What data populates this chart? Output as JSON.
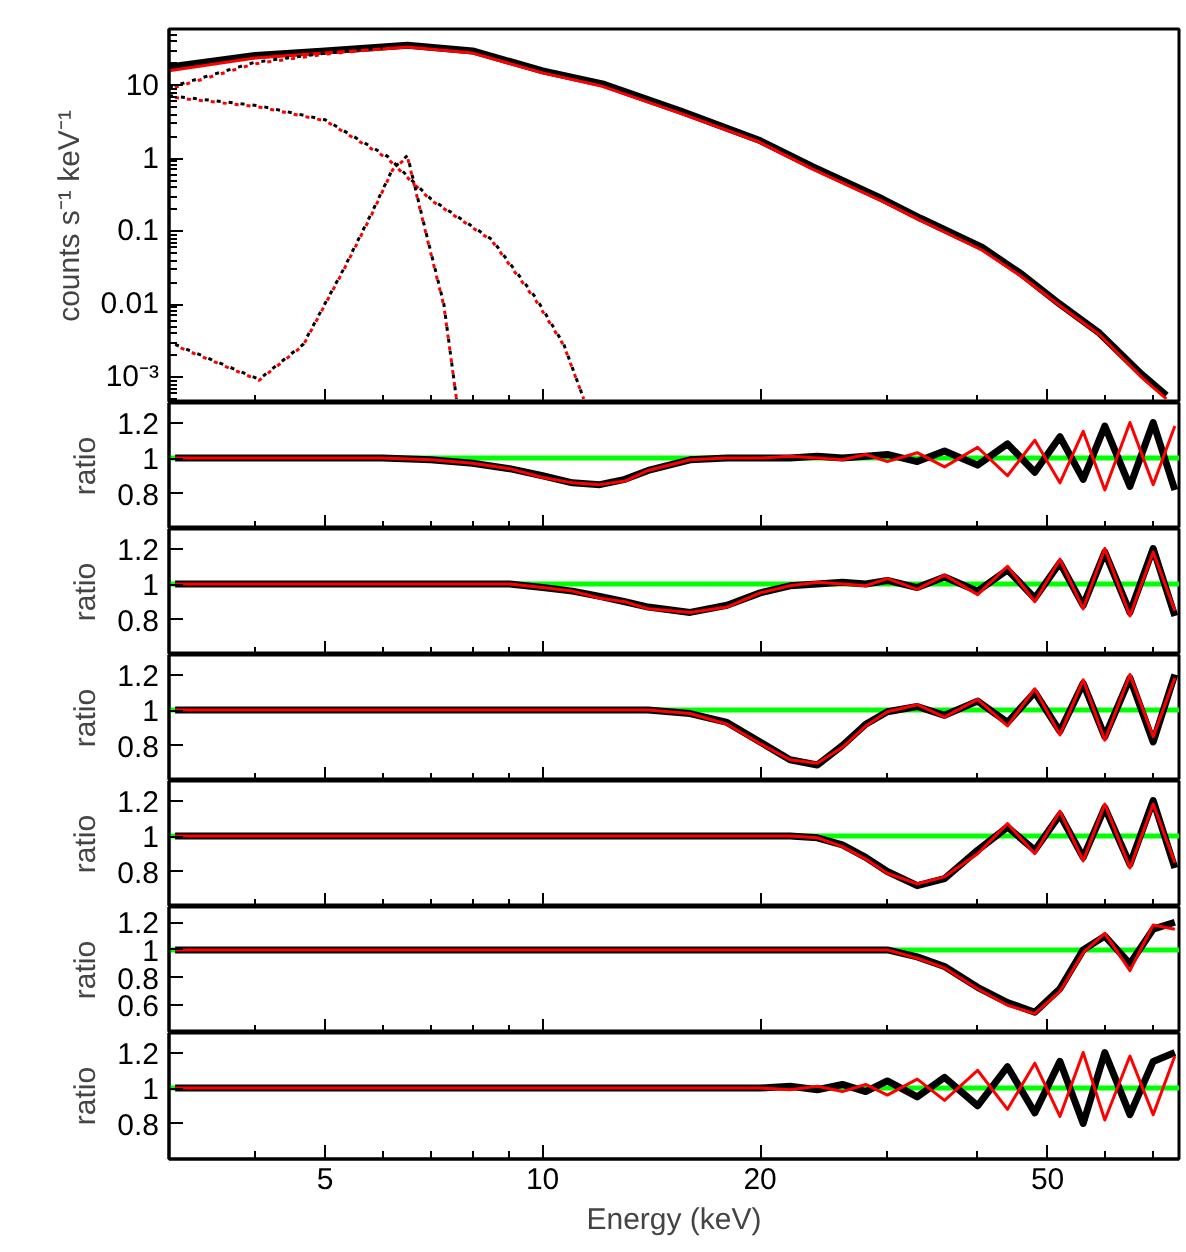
{
  "chart_data": [
    {
      "type": "line",
      "ylabel": "counts s⁻¹ keV⁻¹",
      "log": "xy",
      "xlim": [
        3.04,
        76
      ],
      "xticks": [
        5,
        10,
        20,
        50
      ],
      "ylim": [
        0.00044,
        60
      ],
      "yticks": [
        {
          "value": 0.001,
          "label": "10⁻³"
        },
        0.01,
        0.1,
        1,
        10
      ],
      "tick_labels": "y",
      "series": [
        {
          "color": "#000000",
          "x": [
            3.04,
            4,
            5,
            6,
            6.5,
            8,
            10,
            12.1,
            15.6,
            19.9,
            23.6,
            29.5,
            33.4,
            40.6,
            46,
            52,
            59,
            67.4,
            73
          ],
          "values": [
            18,
            26,
            30,
            34,
            36,
            30,
            16,
            10.6,
            4.4,
            1.8,
            0.78,
            0.28,
            0.15,
            0.06,
            0.026,
            0.01,
            0.004,
            0.0011,
            0.00056
          ]
        },
        {
          "color": "#ff0000",
          "x": [
            3.04,
            4,
            5,
            6,
            6.5,
            8,
            10,
            12.1,
            15.6,
            19.9,
            23.6,
            29.5,
            33.4,
            40.6,
            46,
            52,
            59,
            67.4,
            73
          ],
          "values": [
            16,
            24,
            28,
            32,
            34,
            28,
            15,
            9.8,
            4.1,
            1.7,
            0.72,
            0.26,
            0.14,
            0.055,
            0.024,
            0.0095,
            0.0038,
            0.001,
            0.0005
          ]
        },
        {
          "color": "#000000",
          "line_style": "dotted",
          "x": [
            3.04,
            4,
            5,
            6
          ],
          "values": [
            9.5,
            21,
            28,
            33
          ]
        },
        {
          "color": "#ff0000",
          "line_style": "dotted",
          "x": [
            3.04,
            4,
            5,
            6
          ],
          "values": [
            9,
            20,
            27,
            32
          ]
        },
        {
          "color": "#000000",
          "line_style": "dotted",
          "x": [
            3.04,
            4.05,
            5,
            6.1,
            7,
            8.5,
            9.8,
            10.7,
            11.4
          ],
          "values": [
            7.3,
            5.3,
            3.4,
            1.07,
            0.28,
            0.078,
            0.012,
            0.0028,
            0.0005
          ]
        },
        {
          "color": "#ff0000",
          "line_style": "dotted",
          "x": [
            3.04,
            4.05,
            5,
            6.1,
            7,
            8.5,
            9.8,
            10.7,
            11.4
          ],
          "values": [
            7,
            5.1,
            3.3,
            1.0,
            0.27,
            0.075,
            0.011,
            0.0027,
            0.0005
          ]
        },
        {
          "color": "#000000",
          "line_style": "dotted",
          "x": [
            3.1,
            4.05,
            4.66,
            5.3,
            5.8,
            6.2,
            6.5,
            6.9,
            7.3,
            7.6
          ],
          "values": [
            0.0028,
            0.00093,
            0.0028,
            0.03,
            0.18,
            0.72,
            1.1,
            0.094,
            0.01,
            0.0005
          ]
        },
        {
          "color": "#ff0000",
          "line_style": "dotted",
          "x": [
            3.1,
            4.05,
            4.66,
            5.3,
            5.8,
            6.2,
            6.5,
            6.9,
            7.3,
            7.6
          ],
          "values": [
            0.0027,
            0.0009,
            0.0027,
            0.029,
            0.17,
            0.7,
            1.05,
            0.09,
            0.0095,
            0.0005
          ]
        }
      ]
    },
    {
      "type": "line",
      "ylabel": "ratio",
      "log": "x",
      "xlim": [
        3.04,
        76
      ],
      "xticks": [
        5,
        10,
        20,
        50
      ],
      "ylim": [
        0.6,
        1.31
      ],
      "yticks": [
        0.8,
        1,
        1.2
      ],
      "tick_labels": "y",
      "x": [
        3.1,
        4,
        5,
        6,
        7,
        8,
        9,
        10,
        11,
        12,
        13,
        14,
        16,
        18,
        20,
        22,
        24,
        26,
        28,
        30,
        33,
        36,
        40,
        44,
        48,
        52,
        56,
        60,
        65,
        70,
        75
      ],
      "ref_lines": [
        {
          "axis": "y",
          "value": 1,
          "color": "#00ff00"
        }
      ],
      "series": [
        {
          "color": "#000000",
          "values": [
            1,
            1,
            1,
            1,
            0.99,
            0.97,
            0.94,
            0.9,
            0.86,
            0.85,
            0.88,
            0.93,
            0.99,
            1,
            1,
            1,
            1.01,
            1,
            1.01,
            1.02,
            0.98,
            1.04,
            0.96,
            1.08,
            0.92,
            1.12,
            0.88,
            1.18,
            0.84,
            1.2,
            0.82
          ]
        },
        {
          "color": "#ff0000",
          "values": [
            1,
            1,
            1,
            1,
            0.99,
            0.97,
            0.94,
            0.89,
            0.86,
            0.85,
            0.87,
            0.93,
            0.99,
            1,
            1,
            1.01,
            1,
            0.99,
            1.02,
            0.98,
            1.03,
            0.95,
            1.06,
            0.9,
            1.1,
            0.86,
            1.15,
            0.82,
            1.2,
            0.85,
            1.18
          ]
        }
      ]
    },
    {
      "type": "line",
      "ylabel": "ratio",
      "log": "x",
      "xlim": [
        3.04,
        76
      ],
      "xticks": [
        5,
        10,
        20,
        50
      ],
      "ylim": [
        0.6,
        1.31
      ],
      "yticks": [
        0.8,
        1,
        1.2
      ],
      "tick_labels": "y",
      "x": [
        3.1,
        4,
        5,
        6,
        7,
        8,
        9,
        10,
        11,
        12,
        13,
        14,
        16,
        18,
        20,
        22,
        24,
        26,
        28,
        30,
        33,
        36,
        40,
        44,
        48,
        52,
        56,
        60,
        65,
        70,
        75
      ],
      "ref_lines": [
        {
          "axis": "y",
          "value": 1,
          "color": "#00ff00"
        }
      ],
      "series": [
        {
          "color": "#000000",
          "values": [
            1,
            1,
            1,
            1,
            1,
            1,
            1,
            0.98,
            0.96,
            0.93,
            0.9,
            0.87,
            0.84,
            0.88,
            0.95,
            0.99,
            1,
            1.01,
            1,
            1.02,
            0.98,
            1.04,
            0.96,
            1.08,
            0.92,
            1.12,
            0.88,
            1.18,
            0.84,
            1.2,
            0.82
          ]
        },
        {
          "color": "#ff0000",
          "values": [
            1,
            1,
            1,
            1,
            1,
            1,
            1,
            0.98,
            0.96,
            0.92,
            0.9,
            0.86,
            0.84,
            0.87,
            0.95,
            0.99,
            1.01,
            1,
            0.99,
            1.03,
            0.97,
            1.05,
            0.94,
            1.1,
            0.9,
            1.14,
            0.86,
            1.2,
            0.82,
            1.18,
            0.85
          ]
        }
      ]
    },
    {
      "type": "line",
      "ylabel": "ratio",
      "log": "x",
      "xlim": [
        3.04,
        76
      ],
      "xticks": [
        5,
        10,
        20,
        50
      ],
      "ylim": [
        0.6,
        1.31
      ],
      "yticks": [
        0.8,
        1,
        1.2
      ],
      "tick_labels": "y",
      "x": [
        3.1,
        4,
        5,
        6,
        7,
        8,
        9,
        10,
        11,
        12,
        13,
        14,
        16,
        18,
        20,
        22,
        24,
        26,
        28,
        30,
        33,
        36,
        40,
        44,
        48,
        52,
        56,
        60,
        65,
        70,
        75
      ],
      "ref_lines": [
        {
          "axis": "y",
          "value": 1,
          "color": "#00ff00"
        }
      ],
      "series": [
        {
          "color": "#000000",
          "values": [
            1,
            1,
            1,
            1,
            1,
            1,
            1,
            1,
            1,
            1,
            1,
            1,
            0.98,
            0.93,
            0.82,
            0.72,
            0.69,
            0.8,
            0.92,
            0.99,
            1.02,
            0.97,
            1.05,
            0.93,
            1.1,
            0.88,
            1.15,
            0.85,
            1.18,
            0.82,
            1.2
          ]
        },
        {
          "color": "#ff0000",
          "values": [
            1,
            1,
            1,
            1,
            1,
            1,
            1,
            1,
            1,
            1,
            1,
            1,
            0.98,
            0.92,
            0.81,
            0.72,
            0.7,
            0.79,
            0.91,
            0.99,
            1.03,
            0.96,
            1.06,
            0.91,
            1.12,
            0.86,
            1.17,
            0.83,
            1.2,
            0.85,
            1.18
          ]
        }
      ]
    },
    {
      "type": "line",
      "ylabel": "ratio",
      "log": "x",
      "xlim": [
        3.04,
        76
      ],
      "xticks": [
        5,
        10,
        20,
        50
      ],
      "ylim": [
        0.6,
        1.31
      ],
      "yticks": [
        0.8,
        1,
        1.2
      ],
      "tick_labels": "y",
      "x": [
        3.1,
        4,
        5,
        6,
        7,
        8,
        9,
        10,
        11,
        12,
        13,
        14,
        16,
        18,
        20,
        22,
        24,
        26,
        28,
        30,
        33,
        36,
        40,
        44,
        48,
        52,
        56,
        60,
        65,
        70,
        75
      ],
      "ref_lines": [
        {
          "axis": "y",
          "value": 1,
          "color": "#00ff00"
        }
      ],
      "series": [
        {
          "color": "#000000",
          "values": [
            1,
            1,
            1,
            1,
            1,
            1,
            1,
            1,
            1,
            1,
            1,
            1,
            1,
            1,
            1,
            1,
            0.99,
            0.95,
            0.88,
            0.8,
            0.72,
            0.76,
            0.92,
            1.05,
            0.92,
            1.12,
            0.88,
            1.16,
            0.84,
            1.2,
            0.82
          ]
        },
        {
          "color": "#ff0000",
          "values": [
            1,
            1,
            1,
            1,
            1,
            1,
            1,
            1,
            1,
            1,
            1,
            1,
            1,
            1,
            1,
            1,
            0.99,
            0.94,
            0.87,
            0.79,
            0.73,
            0.77,
            0.9,
            1.07,
            0.9,
            1.14,
            0.86,
            1.18,
            0.82,
            1.18,
            0.85
          ]
        }
      ]
    },
    {
      "type": "line",
      "ylabel": "ratio",
      "log": "x",
      "xlim": [
        3.04,
        76
      ],
      "xticks": [
        5,
        10,
        20,
        50
      ],
      "ylim": [
        0.4,
        1.31
      ],
      "yticks": [
        0.6,
        0.8,
        1,
        1.2
      ],
      "tick_labels": "y",
      "x": [
        3.1,
        4,
        5,
        6,
        7,
        8,
        9,
        10,
        11,
        12,
        13,
        14,
        16,
        18,
        20,
        22,
        24,
        26,
        28,
        30,
        33,
        36,
        40,
        44,
        48,
        52,
        56,
        60,
        65,
        70,
        75
      ],
      "ref_lines": [
        {
          "axis": "y",
          "value": 1,
          "color": "#00ff00"
        }
      ],
      "series": [
        {
          "color": "#000000",
          "values": [
            1,
            1,
            1,
            1,
            1,
            1,
            1,
            1,
            1,
            1,
            1,
            1,
            1,
            1,
            1,
            1,
            1,
            1,
            1,
            1,
            0.95,
            0.88,
            0.73,
            0.62,
            0.55,
            0.72,
            1.0,
            1.1,
            0.9,
            1.15,
            1.2
          ]
        },
        {
          "color": "#ff0000",
          "values": [
            1,
            1,
            1,
            1,
            1,
            1,
            1,
            1,
            1,
            1,
            1,
            1,
            1,
            1,
            1,
            1,
            1,
            1,
            1,
            1,
            0.94,
            0.87,
            0.72,
            0.6,
            0.54,
            0.7,
            0.98,
            1.12,
            0.85,
            1.18,
            1.15
          ]
        }
      ]
    },
    {
      "type": "line",
      "ylabel": "ratio",
      "xlabel": "Energy (keV)",
      "log": "x",
      "xlim": [
        3.04,
        76
      ],
      "xticks": [
        5,
        10,
        20,
        50
      ],
      "ylim": [
        0.6,
        1.31
      ],
      "yticks": [
        0.8,
        1,
        1.2
      ],
      "x": [
        3.1,
        4,
        5,
        6,
        7,
        8,
        9,
        10,
        11,
        12,
        13,
        14,
        16,
        18,
        20,
        22,
        24,
        26,
        28,
        30,
        33,
        36,
        40,
        44,
        48,
        52,
        56,
        60,
        65,
        70,
        75
      ],
      "ref_lines": [
        {
          "axis": "y",
          "value": 1,
          "color": "#00ff00"
        }
      ],
      "series": [
        {
          "color": "#000000",
          "values": [
            1,
            1,
            1,
            1,
            1,
            1,
            1,
            1,
            1,
            1,
            1,
            1,
            1,
            1,
            1,
            1.01,
            0.99,
            1.02,
            0.98,
            1.04,
            0.95,
            1.06,
            0.9,
            1.12,
            0.86,
            1.15,
            0.8,
            1.2,
            0.85,
            1.15,
            1.2
          ]
        },
        {
          "color": "#ff0000",
          "values": [
            1,
            1,
            1,
            1,
            1,
            1,
            1,
            1,
            1,
            1,
            1,
            1,
            1,
            1,
            1,
            0.99,
            1.01,
            0.98,
            1.02,
            0.96,
            1.05,
            0.93,
            1.1,
            0.88,
            1.14,
            0.84,
            1.2,
            0.82,
            1.18,
            0.85,
            1.18
          ]
        }
      ]
    }
  ]
}
